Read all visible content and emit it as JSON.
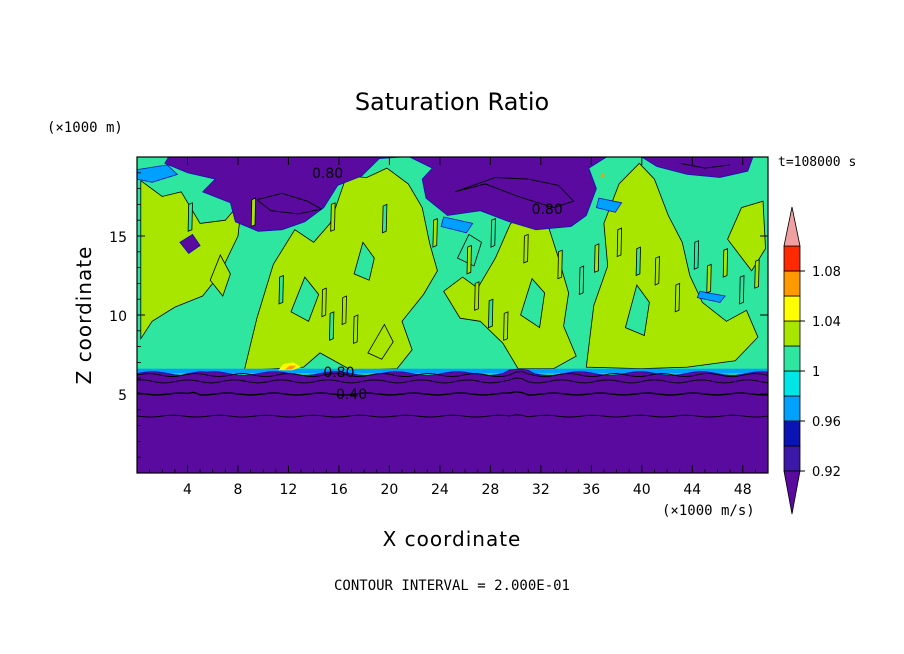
{
  "chart_data": {
    "type": "heatmap",
    "title": "Saturation Ratio",
    "xlabel": "X coordinate",
    "ylabel": "Z coordinate",
    "x_unit_label": "(×1000 m/s)",
    "y_unit_label": "(×1000 m)",
    "time_label": "t=108000 s",
    "footer": "CONTOUR INTERVAL = 2.000E-01",
    "xlim": [
      0,
      50
    ],
    "ylim": [
      0,
      20
    ],
    "x_ticks": [
      4,
      8,
      12,
      16,
      20,
      24,
      28,
      32,
      36,
      40,
      44,
      48
    ],
    "y_ticks": [
      5,
      10,
      15
    ],
    "contour_labels": [
      {
        "text": "0.80",
        "x": 15.1,
        "y": 19.0
      },
      {
        "text": "0.80",
        "x": 32.5,
        "y": 16.7
      },
      {
        "text": "0.80",
        "x": 16.0,
        "y": 6.4
      },
      {
        "text": "0.40",
        "x": 17.0,
        "y": 5.0
      }
    ],
    "colorbar": {
      "labels": [
        "1.08",
        "1.04",
        "1",
        "0.96",
        "0.92"
      ],
      "levels": [
        {
          "lo": null,
          "hi": 0.92,
          "color": "#5a0a9e"
        },
        {
          "lo": 0.92,
          "hi": 0.94,
          "color": "#3c18a8"
        },
        {
          "lo": 0.94,
          "hi": 0.96,
          "color": "#0a14b4"
        },
        {
          "lo": 0.96,
          "hi": 0.98,
          "color": "#00a0ff"
        },
        {
          "lo": 0.98,
          "hi": 1.0,
          "color": "#00e6e6"
        },
        {
          "lo": 1.0,
          "hi": 1.02,
          "color": "#2ee6a0"
        },
        {
          "lo": 1.02,
          "hi": 1.04,
          "color": "#a8e600"
        },
        {
          "lo": 1.04,
          "hi": 1.06,
          "color": "#ffff00"
        },
        {
          "lo": 1.06,
          "hi": 1.08,
          "color": "#ff9900"
        },
        {
          "lo": 1.08,
          "hi": 1.1,
          "color": "#ff2a00"
        },
        {
          "lo": 1.1,
          "hi": null,
          "color": "#f0a0a0"
        }
      ]
    },
    "regions": {
      "subsaturated_layer_top_km": 6.3,
      "field_color_main": "#2ee6a0",
      "field_color_supersat": "#a8e600",
      "field_color_dry": "#5a0a9e"
    }
  }
}
